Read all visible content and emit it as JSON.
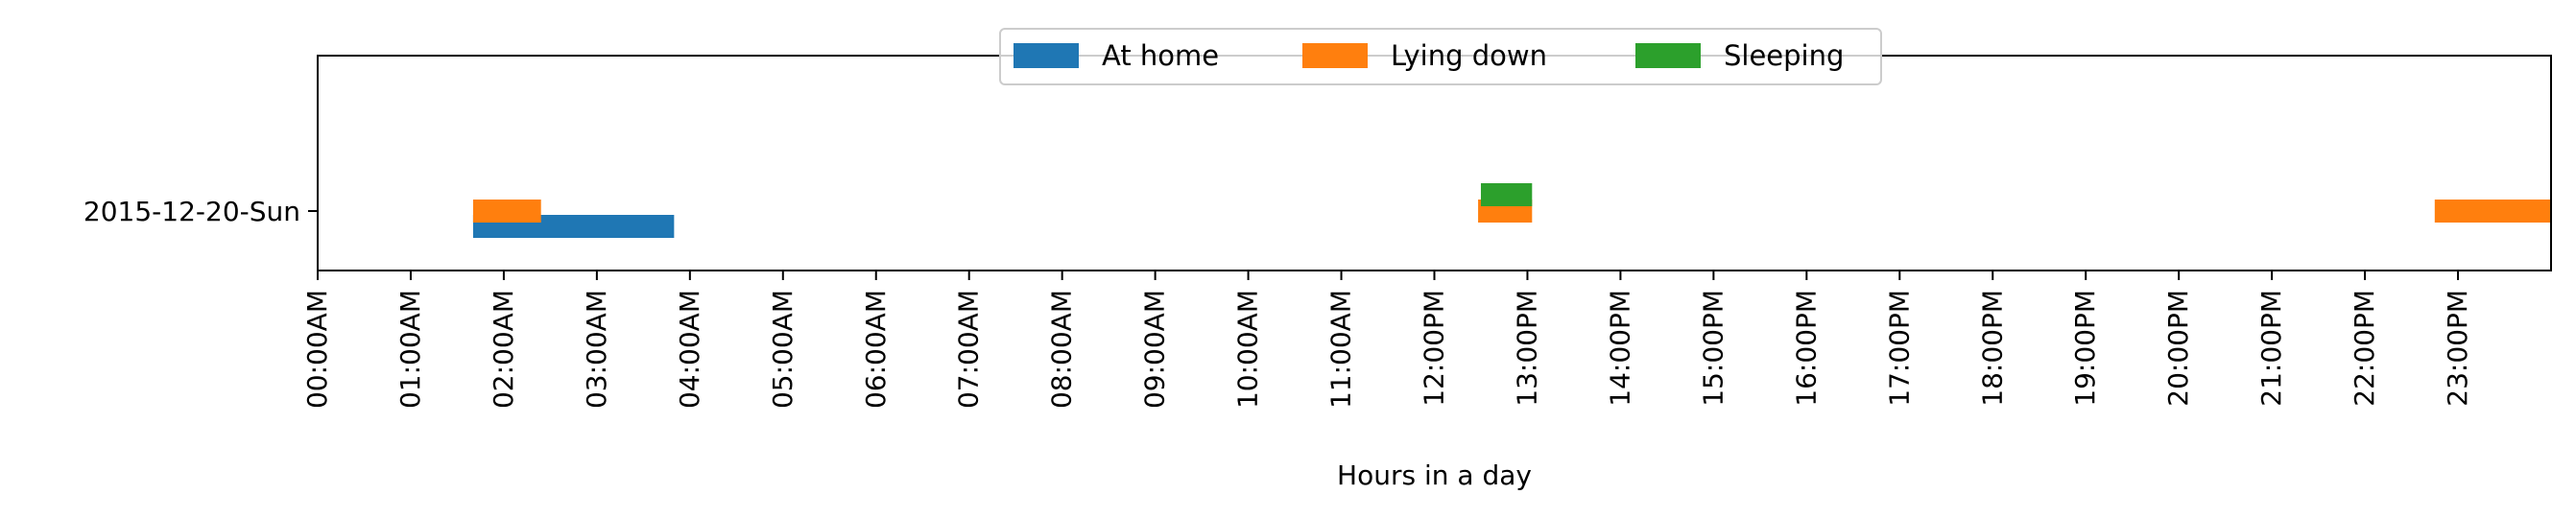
{
  "chart_data": {
    "type": "timeline",
    "title": "",
    "xlabel": "Hours in a day",
    "ylabel": "",
    "x_unit": "hours",
    "xlim": [
      0,
      24
    ],
    "grid": false,
    "legend_placement": "top-center",
    "categories": [
      "2015-12-20-Sun"
    ],
    "x_tick_labels": [
      "00:00AM",
      "01:00AM",
      "02:00AM",
      "03:00AM",
      "04:00AM",
      "05:00AM",
      "06:00AM",
      "07:00AM",
      "08:00AM",
      "09:00AM",
      "10:00AM",
      "11:00AM",
      "12:00PM",
      "13:00PM",
      "14:00PM",
      "15:00PM",
      "16:00PM",
      "17:00PM",
      "18:00PM",
      "19:00PM",
      "20:00PM",
      "21:00PM",
      "22:00PM",
      "23:00PM"
    ],
    "series": [
      {
        "name": "At home",
        "color": "#1f77b4",
        "intervals": [
          [
            1.67,
            3.83
          ]
        ]
      },
      {
        "name": "Lying down",
        "color": "#ff7f0e",
        "intervals": [
          [
            1.67,
            2.4
          ],
          [
            12.47,
            13.05
          ],
          [
            22.75,
            24.0
          ]
        ]
      },
      {
        "name": "Sleeping",
        "color": "#2ca02c",
        "intervals": [
          [
            12.5,
            13.05
          ]
        ]
      }
    ]
  }
}
